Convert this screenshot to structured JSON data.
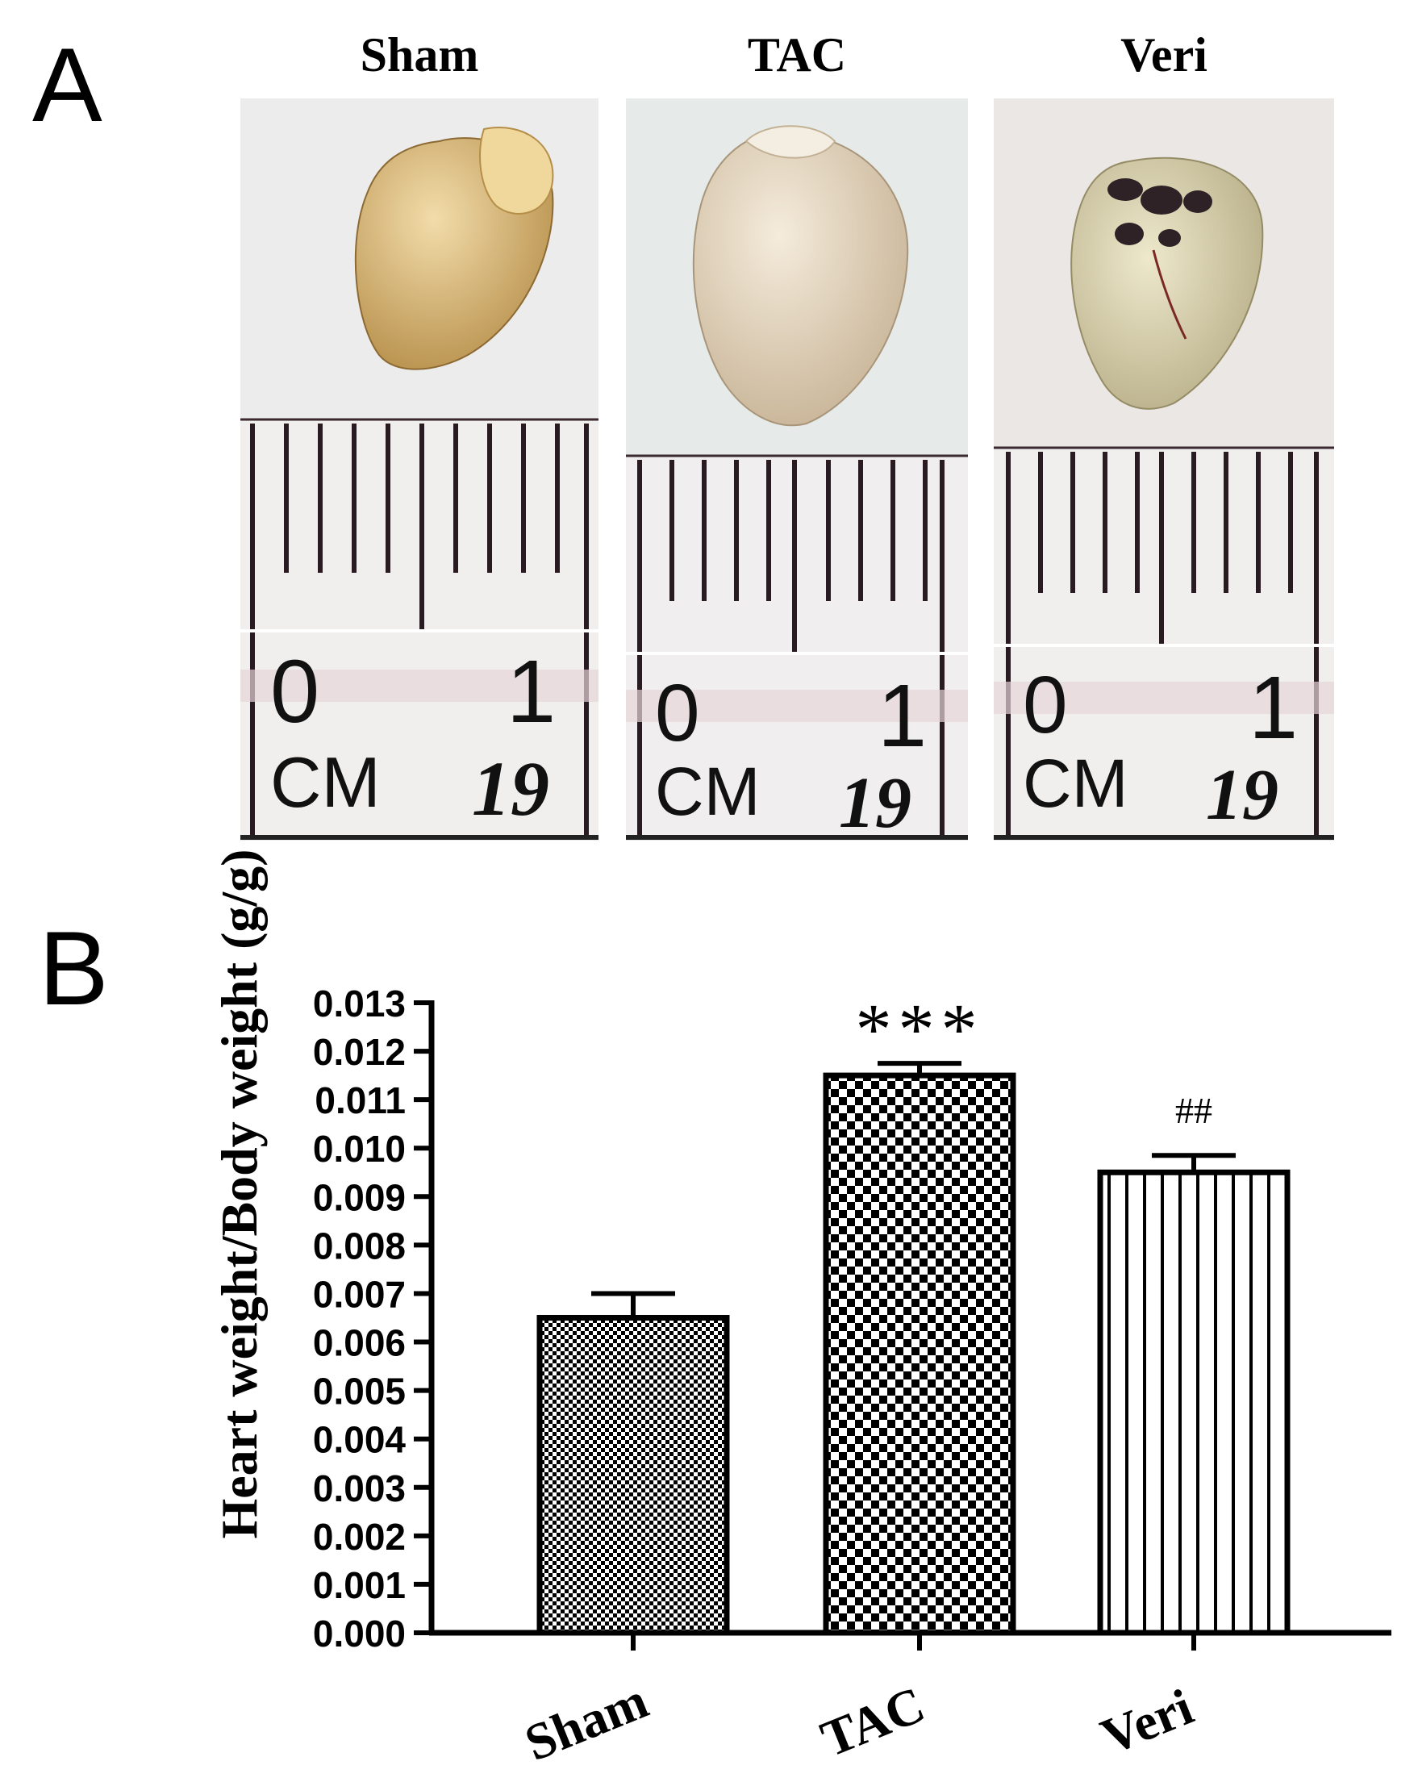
{
  "panels": {
    "a": "A",
    "b": "B"
  },
  "photos": [
    {
      "title": "Sham",
      "ruler_start": "0",
      "ruler_end": "1",
      "ruler_unit": "CM",
      "ruler_brand": "19",
      "heart_color": "#d8b77b",
      "heart_shade": "#a88544"
    },
    {
      "title": "TAC",
      "ruler_start": "0",
      "ruler_end": "1",
      "ruler_unit": "CM",
      "ruler_brand": "19",
      "heart_color": "#e6d8c0",
      "heart_shade": "#b7a489"
    },
    {
      "title": "Veri",
      "ruler_start": "0",
      "ruler_end": "1",
      "ruler_unit": "CM",
      "ruler_brand": "19",
      "heart_color": "#ddd6b2",
      "heart_shade": "#a9a078"
    }
  ],
  "chart_data": {
    "type": "bar",
    "categories": [
      "Sham",
      "TAC",
      "Veri"
    ],
    "values": [
      0.0065,
      0.0115,
      0.0095
    ],
    "errors": [
      0.0005,
      0.00025,
      0.00035
    ],
    "annotations": [
      "",
      "***",
      "##"
    ],
    "patterns": [
      "fine-checker",
      "checker",
      "vertical-stripes"
    ],
    "ylabel": "Heart weight/Body weight (g/g)",
    "ylim": [
      0,
      0.013
    ],
    "yticks": [
      "0.000",
      "0.001",
      "0.002",
      "0.003",
      "0.004",
      "0.005",
      "0.006",
      "0.007",
      "0.008",
      "0.009",
      "0.010",
      "0.011",
      "0.012",
      "0.013"
    ],
    "grid": false,
    "legend": "none"
  }
}
